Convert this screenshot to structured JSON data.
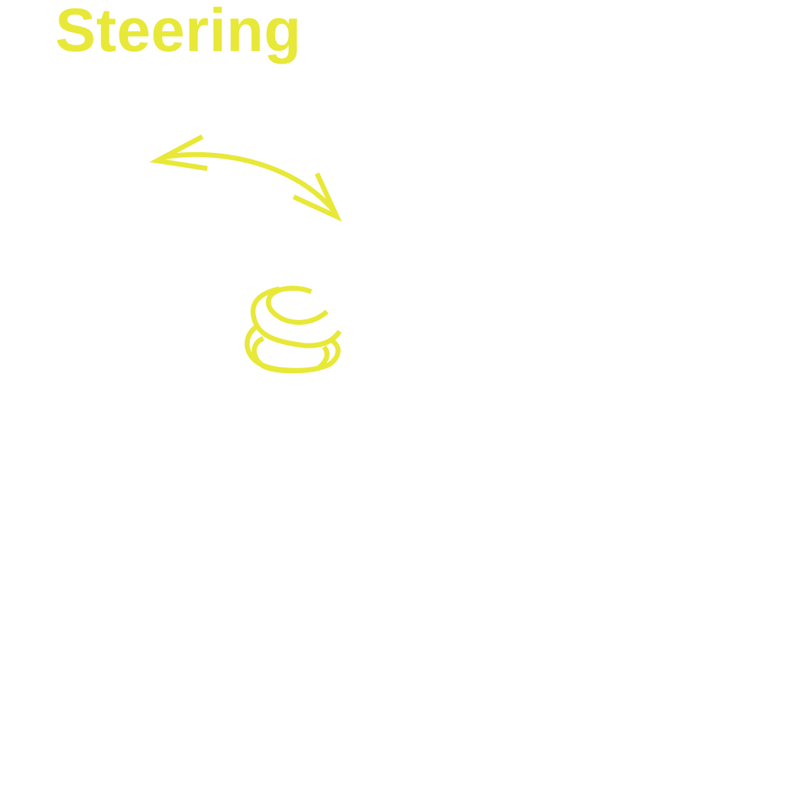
{
  "title": "Steering",
  "colors": {
    "accent": "#e8e838",
    "background": "#ffffff"
  },
  "icons": [
    "curved-double-arrow-icon",
    "wheel-scribble-icon"
  ]
}
